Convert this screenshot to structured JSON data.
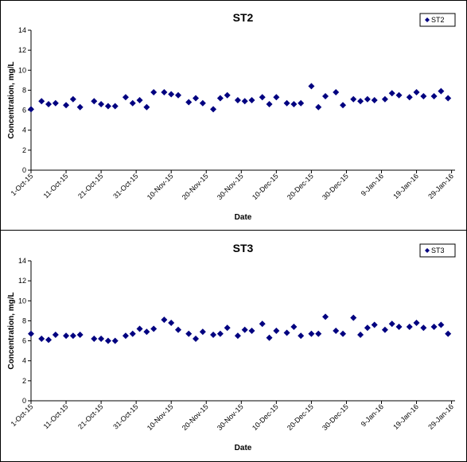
{
  "chart_data": [
    {
      "type": "scatter",
      "title": "ST2",
      "xlabel": "Date",
      "ylabel": "Concentration, mg/L",
      "ylim": [
        0,
        14
      ],
      "yticks": [
        "0",
        "2",
        "4",
        "6",
        "8",
        "10",
        "12",
        "14"
      ],
      "xticks": [
        "1-Oct-15",
        "11-Oct-15",
        "21-Oct-15",
        "31-Oct-15",
        "10-Nov-15",
        "20-Nov-15",
        "30-Nov-15",
        "10-Dec-15",
        "20-Dec-15",
        "30-Dec-15",
        "9-Jan-16",
        "19-Jan-16",
        "29-Jan-16"
      ],
      "xrange": [
        "2015-10-01",
        "2016-01-30"
      ],
      "legend": "top-right",
      "marker_color": "#000080",
      "series": [
        {
          "name": "ST2",
          "points": [
            [
              "2015-10-01",
              6.1
            ],
            [
              "2015-10-04",
              6.9
            ],
            [
              "2015-10-06",
              6.6
            ],
            [
              "2015-10-08",
              6.7
            ],
            [
              "2015-10-11",
              6.5
            ],
            [
              "2015-10-13",
              7.1
            ],
            [
              "2015-10-15",
              6.3
            ],
            [
              "2015-10-19",
              6.9
            ],
            [
              "2015-10-21",
              6.6
            ],
            [
              "2015-10-23",
              6.4
            ],
            [
              "2015-10-25",
              6.4
            ],
            [
              "2015-10-28",
              7.3
            ],
            [
              "2015-10-30",
              6.7
            ],
            [
              "2015-11-01",
              7.0
            ],
            [
              "2015-11-03",
              6.3
            ],
            [
              "2015-11-05",
              7.8
            ],
            [
              "2015-11-08",
              7.8
            ],
            [
              "2015-11-10",
              7.6
            ],
            [
              "2015-11-12",
              7.5
            ],
            [
              "2015-11-15",
              6.8
            ],
            [
              "2015-11-17",
              7.2
            ],
            [
              "2015-11-19",
              6.7
            ],
            [
              "2015-11-22",
              6.1
            ],
            [
              "2015-11-24",
              7.2
            ],
            [
              "2015-11-26",
              7.5
            ],
            [
              "2015-11-29",
              7.0
            ],
            [
              "2015-12-01",
              6.9
            ],
            [
              "2015-12-03",
              7.0
            ],
            [
              "2015-12-06",
              7.3
            ],
            [
              "2015-12-08",
              6.6
            ],
            [
              "2015-12-10",
              7.3
            ],
            [
              "2015-12-13",
              6.7
            ],
            [
              "2015-12-15",
              6.6
            ],
            [
              "2015-12-17",
              6.7
            ],
            [
              "2015-12-20",
              8.4
            ],
            [
              "2015-12-22",
              6.3
            ],
            [
              "2015-12-24",
              7.4
            ],
            [
              "2015-12-27",
              7.8
            ],
            [
              "2015-12-29",
              6.5
            ],
            [
              "2016-01-01",
              7.1
            ],
            [
              "2016-01-03",
              6.9
            ],
            [
              "2016-01-05",
              7.1
            ],
            [
              "2016-01-07",
              7.0
            ],
            [
              "2016-01-10",
              7.1
            ],
            [
              "2016-01-12",
              7.7
            ],
            [
              "2016-01-14",
              7.5
            ],
            [
              "2016-01-17",
              7.3
            ],
            [
              "2016-01-19",
              7.8
            ],
            [
              "2016-01-21",
              7.4
            ],
            [
              "2016-01-24",
              7.4
            ],
            [
              "2016-01-26",
              7.9
            ],
            [
              "2016-01-28",
              7.2
            ]
          ]
        }
      ]
    },
    {
      "type": "scatter",
      "title": "ST3",
      "xlabel": "Date",
      "ylabel": "Concentration, mg/L",
      "ylim": [
        0,
        14
      ],
      "yticks": [
        "0",
        "2",
        "4",
        "6",
        "8",
        "10",
        "12",
        "14"
      ],
      "xticks": [
        "1-Oct-15",
        "11-Oct-15",
        "21-Oct-15",
        "31-Oct-15",
        "10-Nov-15",
        "20-Nov-15",
        "30-Nov-15",
        "10-Dec-15",
        "20-Dec-15",
        "30-Dec-15",
        "9-Jan-16",
        "19-Jan-16",
        "29-Jan-16"
      ],
      "xrange": [
        "2015-10-01",
        "2016-01-30"
      ],
      "legend": "top-right",
      "marker_color": "#000080",
      "series": [
        {
          "name": "ST3",
          "points": [
            [
              "2015-10-01",
              6.7
            ],
            [
              "2015-10-04",
              6.2
            ],
            [
              "2015-10-06",
              6.1
            ],
            [
              "2015-10-08",
              6.6
            ],
            [
              "2015-10-11",
              6.5
            ],
            [
              "2015-10-13",
              6.5
            ],
            [
              "2015-10-15",
              6.6
            ],
            [
              "2015-10-19",
              6.2
            ],
            [
              "2015-10-21",
              6.2
            ],
            [
              "2015-10-23",
              6.0
            ],
            [
              "2015-10-25",
              6.0
            ],
            [
              "2015-10-28",
              6.5
            ],
            [
              "2015-10-30",
              6.7
            ],
            [
              "2015-11-01",
              7.2
            ],
            [
              "2015-11-03",
              6.9
            ],
            [
              "2015-11-05",
              7.2
            ],
            [
              "2015-11-08",
              8.1
            ],
            [
              "2015-11-10",
              7.8
            ],
            [
              "2015-11-12",
              7.1
            ],
            [
              "2015-11-15",
              6.7
            ],
            [
              "2015-11-17",
              6.2
            ],
            [
              "2015-11-19",
              6.9
            ],
            [
              "2015-11-22",
              6.6
            ],
            [
              "2015-11-24",
              6.7
            ],
            [
              "2015-11-26",
              7.3
            ],
            [
              "2015-11-29",
              6.5
            ],
            [
              "2015-12-01",
              7.1
            ],
            [
              "2015-12-03",
              7.0
            ],
            [
              "2015-12-06",
              7.7
            ],
            [
              "2015-12-08",
              6.3
            ],
            [
              "2015-12-10",
              7.0
            ],
            [
              "2015-12-13",
              6.8
            ],
            [
              "2015-12-15",
              7.4
            ],
            [
              "2015-12-17",
              6.5
            ],
            [
              "2015-12-20",
              6.7
            ],
            [
              "2015-12-22",
              6.7
            ],
            [
              "2015-12-24",
              8.4
            ],
            [
              "2015-12-27",
              7.0
            ],
            [
              "2015-12-29",
              6.7
            ],
            [
              "2016-01-01",
              8.3
            ],
            [
              "2016-01-03",
              6.6
            ],
            [
              "2016-01-05",
              7.3
            ],
            [
              "2016-01-07",
              7.6
            ],
            [
              "2016-01-10",
              7.1
            ],
            [
              "2016-01-12",
              7.7
            ],
            [
              "2016-01-14",
              7.4
            ],
            [
              "2016-01-17",
              7.4
            ],
            [
              "2016-01-19",
              7.8
            ],
            [
              "2016-01-21",
              7.3
            ],
            [
              "2016-01-24",
              7.4
            ],
            [
              "2016-01-26",
              7.6
            ],
            [
              "2016-01-28",
              6.7
            ]
          ]
        }
      ]
    }
  ]
}
